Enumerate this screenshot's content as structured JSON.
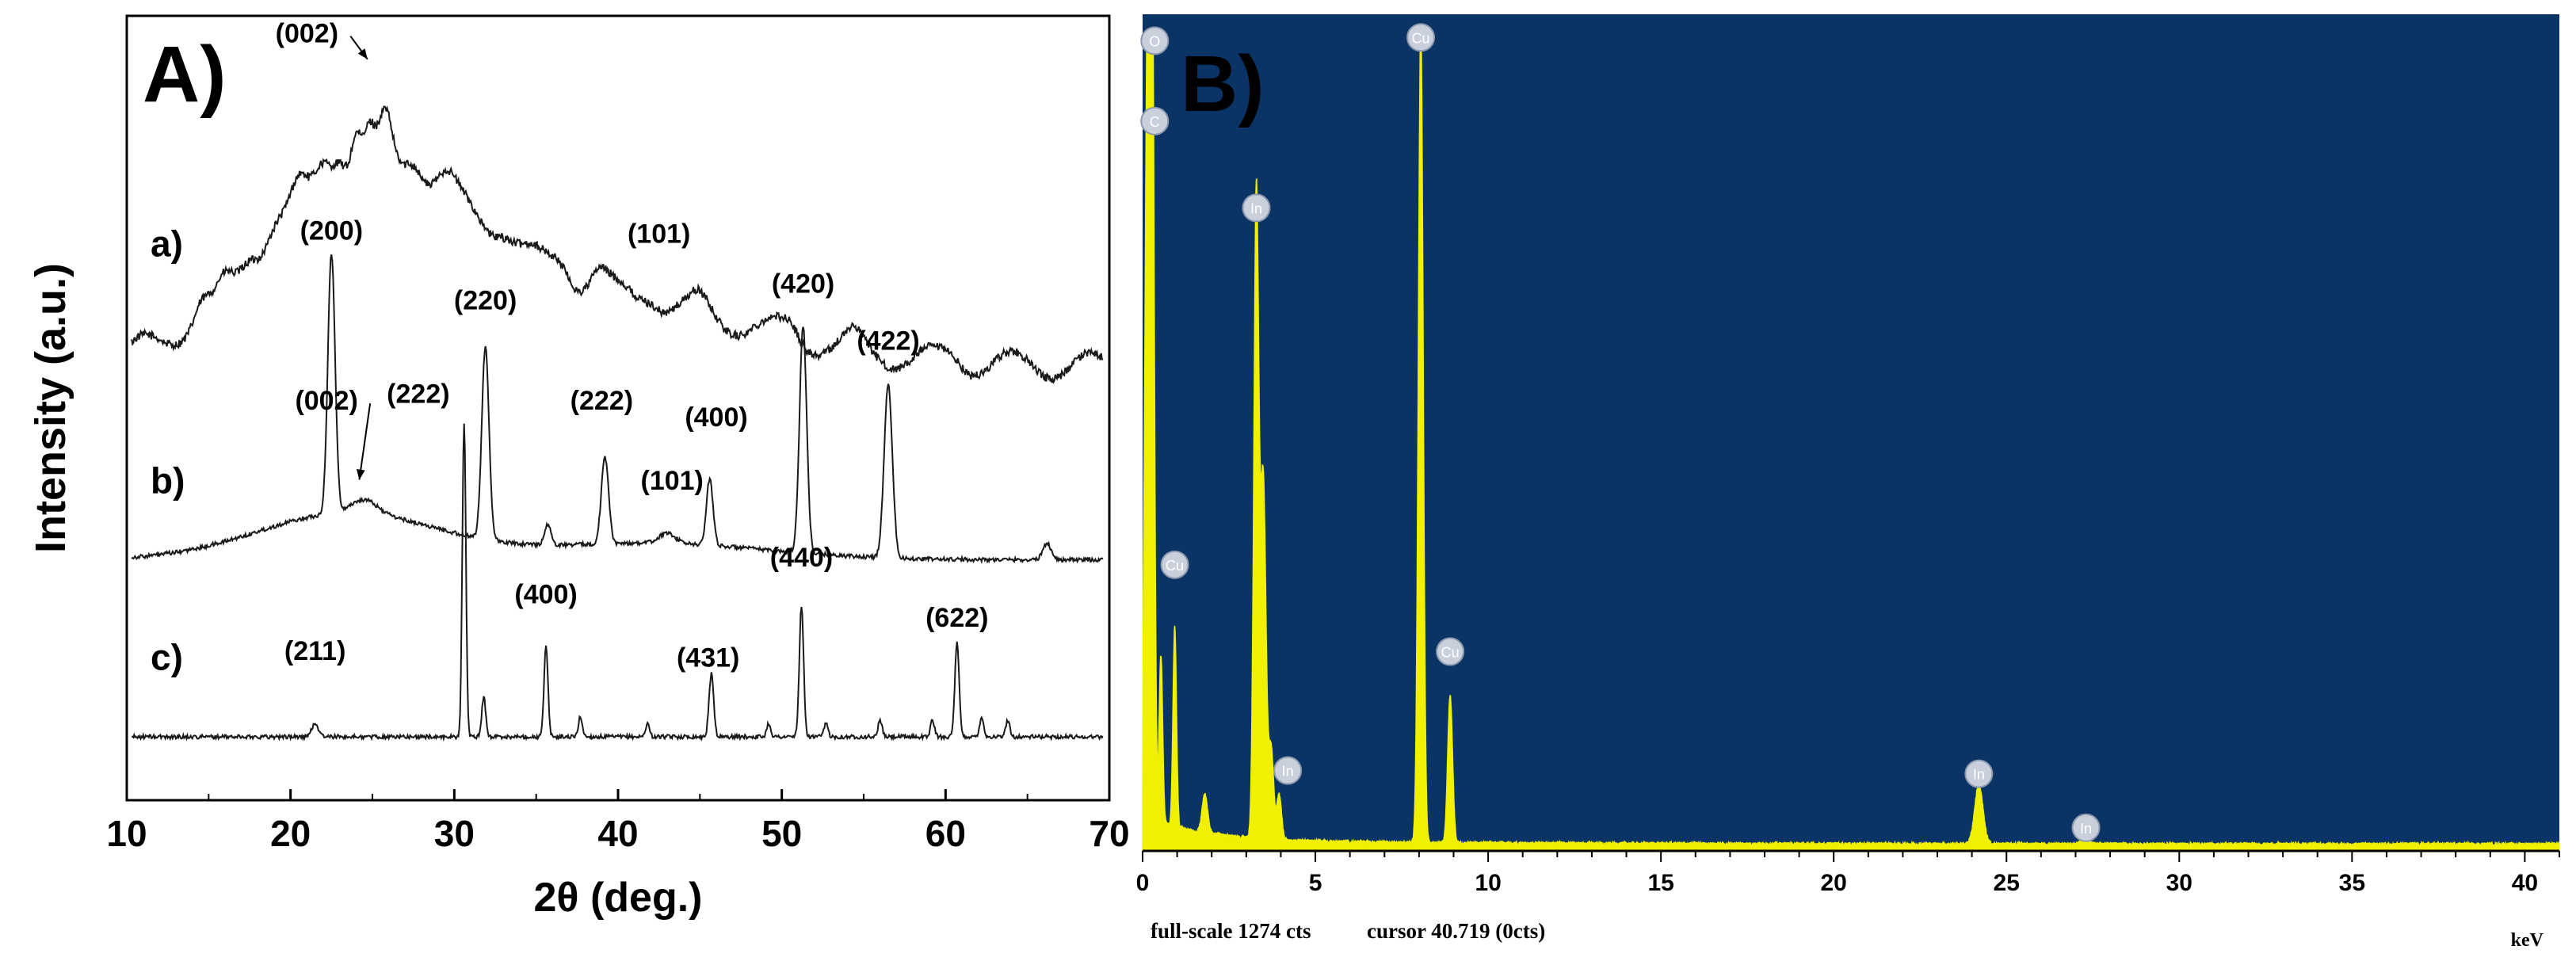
{
  "chart_data": [
    {
      "type": "line",
      "panel_label": "A)",
      "xlabel": "2θ (deg.)",
      "ylabel": "Intensity (a.u.)",
      "xlim": [
        10,
        70
      ],
      "xticks": [
        10,
        20,
        30,
        40,
        50,
        60,
        70
      ],
      "series": [
        {
          "name": "a)",
          "baseline": 1.3,
          "peaks": [
            [
              14.5,
              0.04,
              0.4
            ],
            [
              16.0,
              0.03,
              0.4
            ],
            [
              17.5,
              0.05,
              0.5
            ],
            [
              19.0,
              0.06,
              0.6
            ],
            [
              20.5,
              0.08,
              0.5
            ],
            [
              22.0,
              0.1,
              0.5
            ],
            [
              23.0,
              0.08,
              0.4
            ],
            [
              24.0,
              0.12,
              0.3
            ],
            [
              24.8,
              0.1,
              0.3
            ],
            [
              25.8,
              0.14,
              0.4
            ],
            [
              27.5,
              0.06,
              0.5
            ],
            [
              29.5,
              0.04,
              0.5
            ],
            [
              33.0,
              0.03,
              0.5
            ],
            [
              36.5,
              0.04,
              0.5
            ],
            [
              38.8,
              0.05,
              0.5
            ],
            [
              42.0,
              0.03,
              0.5
            ],
            [
              45.0,
              0.03,
              0.5
            ],
            [
              50.5,
              0.03,
              0.5
            ],
            [
              54.5,
              0.03,
              0.5
            ],
            [
              60.5,
              0.02,
              0.5
            ]
          ],
          "broad": [
            [
              25.0,
              0.55,
              6.5
            ],
            [
              40.0,
              0.18,
              9.0
            ]
          ],
          "labels": [
            {
              "text": "(002)",
              "x": 21.0,
              "y": 2.27,
              "arrow_to": [
                24.7,
                2.22
              ]
            },
            {
              "text": "(101)",
              "x": 42.5,
              "y": 1.67
            }
          ]
        },
        {
          "name": "b)",
          "baseline": 0.72,
          "peaks": [
            [
              22.5,
              0.78,
              0.22
            ],
            [
              31.9,
              0.58,
              0.22
            ],
            [
              35.7,
              0.06,
              0.2
            ],
            [
              39.2,
              0.26,
              0.22
            ],
            [
              45.6,
              0.2,
              0.2
            ],
            [
              51.3,
              0.68,
              0.22
            ],
            [
              56.5,
              0.52,
              0.25
            ],
            [
              66.2,
              0.05,
              0.25
            ],
            [
              24.5,
              0.04,
              0.8
            ],
            [
              43.0,
              0.03,
              0.5
            ]
          ],
          "broad": [
            [
              23.5,
              0.14,
              5.5
            ],
            [
              42.0,
              0.05,
              7.0
            ]
          ],
          "labels": [
            {
              "text": "(200)",
              "x": 22.5,
              "y": 1.68
            },
            {
              "text": "(220)",
              "x": 31.9,
              "y": 1.47
            },
            {
              "text": "(002)",
              "x": 22.2,
              "y": 1.17,
              "arrow_to": [
                24.2,
                0.96
              ]
            },
            {
              "text": "(222)",
              "x": 39.0,
              "y": 1.17
            },
            {
              "text": "(400)",
              "x": 46.0,
              "y": 1.12
            },
            {
              "text": "(101)",
              "x": 43.3,
              "y": 0.93
            },
            {
              "text": "(420)",
              "x": 51.3,
              "y": 1.52
            },
            {
              "text": "(422)",
              "x": 56.5,
              "y": 1.35
            }
          ]
        },
        {
          "name": "c)",
          "baseline": 0.19,
          "peaks": [
            [
              21.5,
              0.04,
              0.2
            ],
            [
              30.6,
              0.94,
              0.11
            ],
            [
              31.8,
              0.12,
              0.12
            ],
            [
              35.6,
              0.27,
              0.12
            ],
            [
              37.7,
              0.06,
              0.12
            ],
            [
              41.8,
              0.04,
              0.12
            ],
            [
              45.7,
              0.19,
              0.14
            ],
            [
              49.2,
              0.04,
              0.12
            ],
            [
              51.2,
              0.39,
              0.13
            ],
            [
              52.7,
              0.04,
              0.12
            ],
            [
              56.0,
              0.05,
              0.12
            ],
            [
              59.2,
              0.05,
              0.12
            ],
            [
              60.7,
              0.28,
              0.13
            ],
            [
              62.2,
              0.06,
              0.12
            ],
            [
              63.8,
              0.05,
              0.12
            ]
          ],
          "broad": [],
          "labels": [
            {
              "text": "(211)",
              "x": 21.5,
              "y": 0.42
            },
            {
              "text": "(222)",
              "x": 27.8,
              "y": 1.19
            },
            {
              "text": "(400)",
              "x": 35.6,
              "y": 0.59
            },
            {
              "text": "(431)",
              "x": 45.5,
              "y": 0.4
            },
            {
              "text": "(440)",
              "x": 51.2,
              "y": 0.7
            },
            {
              "text": "(622)",
              "x": 60.7,
              "y": 0.52
            }
          ]
        }
      ]
    },
    {
      "type": "bar",
      "panel_label": "B)",
      "xlabel": "keV",
      "xlim": [
        0,
        41
      ],
      "xticks": [
        0,
        5,
        10,
        15,
        20,
        25,
        30,
        35,
        40
      ],
      "ylim": [
        0,
        1274
      ],
      "colors": {
        "background": "#0b3466",
        "spectrum": "#f0f000",
        "marker": "#c9d0dc"
      },
      "spectrum_peaks": [
        [
          0.15,
          1274,
          0.08
        ],
        [
          0.28,
          1150,
          0.06
        ],
        [
          0.53,
          260,
          0.05
        ],
        [
          0.93,
          310,
          0.05
        ],
        [
          1.8,
          60,
          0.08
        ],
        [
          3.29,
          1000,
          0.07
        ],
        [
          3.49,
          560,
          0.08
        ],
        [
          3.72,
          140,
          0.07
        ],
        [
          3.95,
          70,
          0.07
        ],
        [
          8.05,
          1274,
          0.07
        ],
        [
          8.9,
          230,
          0.07
        ],
        [
          24.2,
          92,
          0.12
        ],
        [
          27.3,
          13,
          0.1
        ]
      ],
      "markers": [
        {
          "element": "O",
          "kev": 0.35,
          "counts": 1260
        },
        {
          "element": "C",
          "kev": 0.35,
          "counts": 1135
        },
        {
          "element": "In",
          "kev": 3.29,
          "counts": 1000
        },
        {
          "element": "Cu",
          "kev": 0.93,
          "counts": 445
        },
        {
          "element": "In",
          "kev": 4.2,
          "counts": 125
        },
        {
          "element": "Cu",
          "kev": 8.05,
          "counts": 1265
        },
        {
          "element": "Cu",
          "kev": 8.9,
          "counts": 310
        },
        {
          "element": "In",
          "kev": 24.2,
          "counts": 120
        },
        {
          "element": "In",
          "kev": 27.3,
          "counts": 36
        }
      ],
      "footer": {
        "fullscale": "full-scale 1274 cts",
        "cursor": "cursor 40.719 (0cts)"
      }
    }
  ]
}
